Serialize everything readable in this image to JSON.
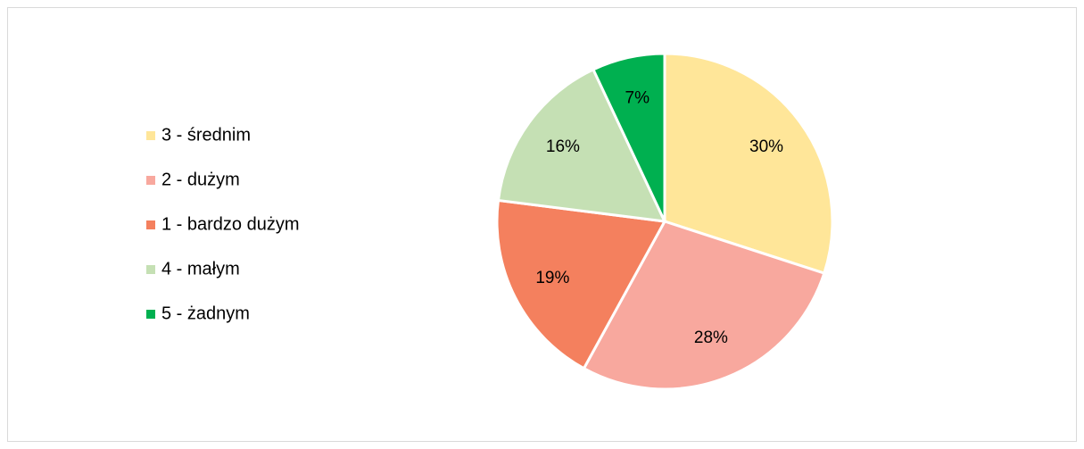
{
  "chart_data": {
    "type": "pie",
    "categories": [
      "3 - średnim",
      "2 - dużym",
      "1 - bardzo dużym",
      "4 - małym",
      "5 - żadnym"
    ],
    "values": [
      30,
      28,
      19,
      16,
      7
    ],
    "value_labels": [
      "30%",
      "28%",
      "19%",
      "16%",
      "7%"
    ],
    "colors": [
      "#FFE699",
      "#F8A89E",
      "#F4805E",
      "#C5E0B4",
      "#00B050"
    ],
    "legend": "left"
  }
}
